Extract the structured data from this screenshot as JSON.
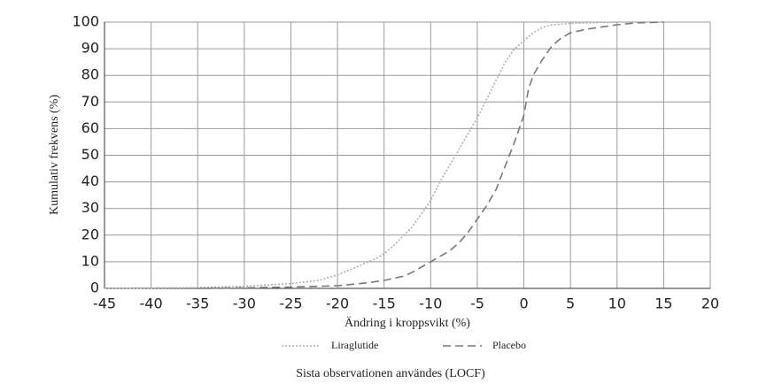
{
  "chart_data": {
    "type": "line",
    "x_label": "Ändring i kroppsvikt (%)",
    "y_label": "Kumulativ frekvens (%)",
    "footnote": "Sista observationen användes (LOCF)",
    "xlim": [
      -45,
      20
    ],
    "xticks": [
      -45,
      -40,
      -35,
      -30,
      -25,
      -20,
      -15,
      -10,
      -5,
      0,
      5,
      10,
      15,
      20
    ],
    "ylim": [
      0,
      100
    ],
    "yticks": [
      0,
      10,
      20,
      30,
      40,
      50,
      60,
      70,
      80,
      90,
      100
    ],
    "grid": true,
    "series": [
      {
        "name": "Liraglutide",
        "color": "#b0b0b0",
        "dash": "2,2",
        "x": [
          -45,
          -35,
          -30,
          -25,
          -22,
          -20,
          -18,
          -16,
          -15,
          -14,
          -12,
          -10,
          -9,
          -8,
          -7,
          -6,
          -5,
          -4,
          -3,
          -2,
          -1,
          0,
          1,
          2,
          3,
          5,
          10,
          15
        ],
        "values": [
          0,
          0.3,
          0.8,
          1.8,
          3,
          5,
          8,
          11,
          13,
          16,
          23,
          33,
          40,
          46,
          52,
          58,
          64,
          71,
          78,
          85,
          90,
          93,
          96,
          98,
          99,
          99.5,
          100,
          100
        ]
      },
      {
        "name": "Placebo",
        "color": "#7a7a7a",
        "dash": "9,5",
        "x": [
          -35,
          -30,
          -25,
          -20,
          -17,
          -15,
          -13,
          -12,
          -10,
          -8,
          -7,
          -6,
          -5,
          -4,
          -3,
          -2,
          -1,
          0,
          0.5,
          1,
          2,
          3,
          4,
          5,
          7,
          10,
          12,
          15
        ],
        "values": [
          0,
          0.2,
          0.5,
          1,
          2,
          3,
          4.5,
          6,
          10,
          14,
          17,
          21,
          26,
          31,
          37,
          46,
          55,
          65,
          75,
          80,
          86,
          91,
          94,
          96,
          97.5,
          99,
          99.7,
          100
        ]
      }
    ]
  }
}
